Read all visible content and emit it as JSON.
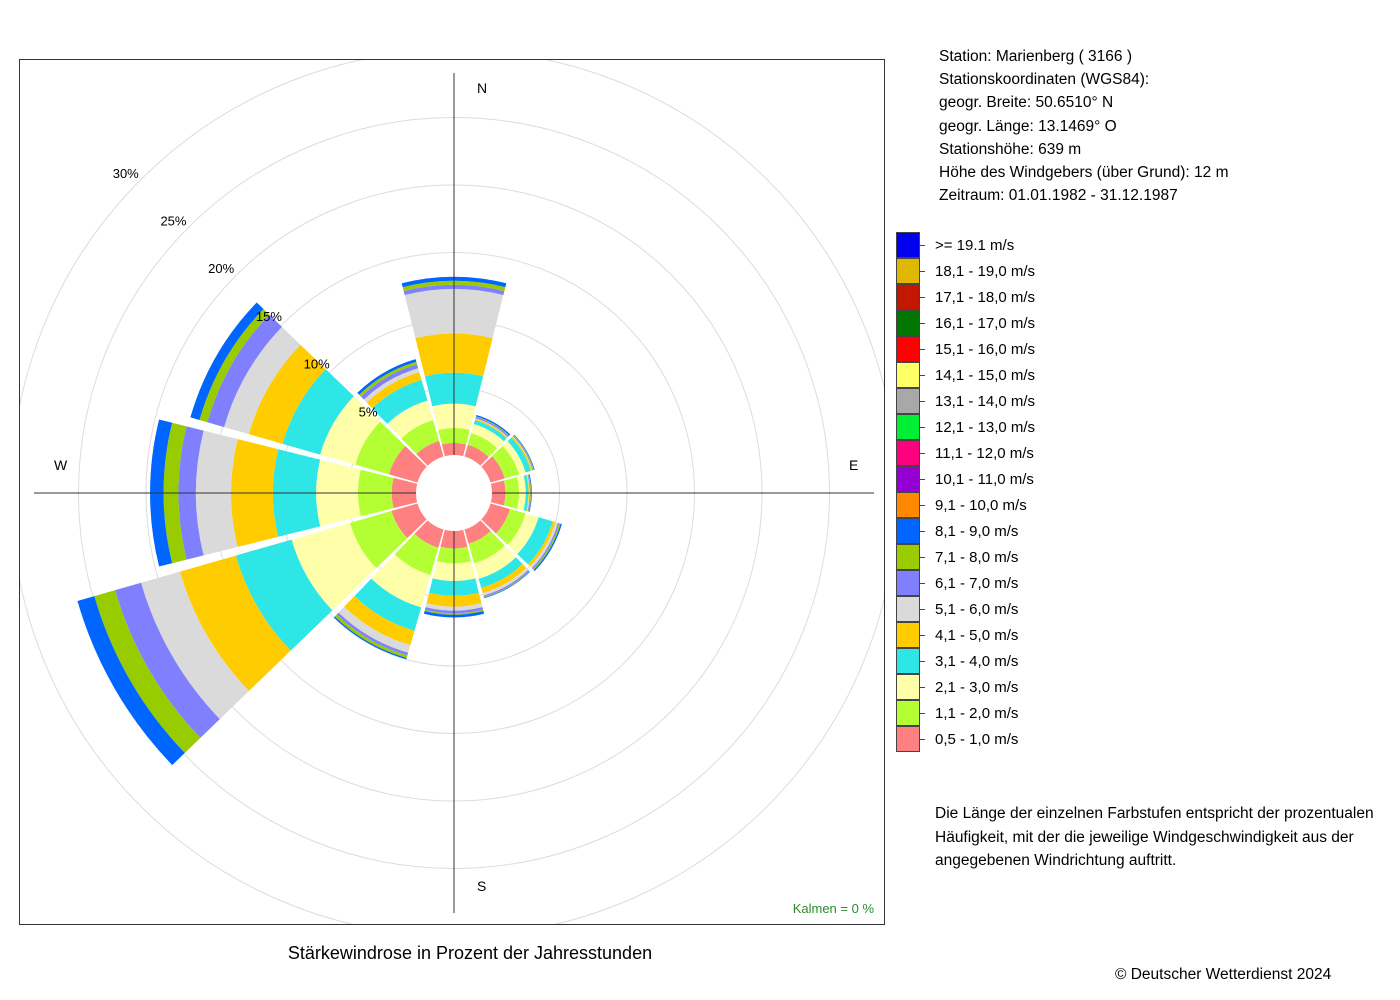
{
  "station": {
    "name_line": "Station:  Marienberg  ( 3166 )",
    "coords_title": "Stationskoordinaten (WGS84):",
    "lat": "geogr. Breite: 50.6510° N",
    "lon": "geogr. Länge: 13.1469° O",
    "altitude": "Stationshöhe: 639 m",
    "sensor_height": "Höhe des Windgebers (über Grund): 12 m",
    "period": "Zeitraum: 01.01.1982 - 31.12.1987"
  },
  "note": "Die Länge der einzelnen Farbstufen entspricht der prozentualen Häufigkeit, mit der die jeweilige Windgeschwindigkeit aus der angegebenen Windrichtung auftritt.",
  "copyright": "© Deutscher Wetterdienst  2024",
  "chart_data": {
    "type": "wind-rose",
    "title": "Stärkewindrose in Prozent der Jahresstunden",
    "directions": [
      "N",
      "E",
      "S",
      "W"
    ],
    "sectors_deg": [
      0,
      30,
      60,
      90,
      120,
      150,
      180,
      210,
      240,
      270,
      300,
      330
    ],
    "ring_labels": [
      "5%",
      "10%",
      "15%",
      "20%",
      "25%",
      "30%"
    ],
    "ring_values": [
      5,
      10,
      15,
      20,
      25,
      30
    ],
    "calm_label": "Kalmen  =  0 %",
    "bins": [
      {
        "label": ">= 19.1 m/s",
        "color": "#0000ee"
      },
      {
        "label": "18,1 - 19,0 m/s",
        "color": "#dfb700"
      },
      {
        "label": "17,1 - 18,0 m/s",
        "color": "#c21700"
      },
      {
        "label": "16,1 - 17,0 m/s",
        "color": "#007500"
      },
      {
        "label": "15,1 - 16,0 m/s",
        "color": "#ff0000"
      },
      {
        "label": "14,1 - 15,0 m/s",
        "color": "#ffff66"
      },
      {
        "label": "13,1 - 14,0 m/s",
        "color": "#a8a8a8"
      },
      {
        "label": "12,1 - 13,0 m/s",
        "color": "#00ee33"
      },
      {
        "label": "11,1 - 12,0 m/s",
        "color": "#ff007f"
      },
      {
        "label": "10,1 - 11,0 m/s",
        "color": "#9400d3"
      },
      {
        "label": "9,1 - 10,0 m/s",
        "color": "#ff8800"
      },
      {
        "label": "8,1 - 9,0 m/s",
        "color": "#0066ff"
      },
      {
        "label": "7,1 - 8,0 m/s",
        "color": "#99cc00"
      },
      {
        "label": "6,1 - 7,0 m/s",
        "color": "#8080ff"
      },
      {
        "label": "5,1 - 6,0 m/s",
        "color": "#dadada"
      },
      {
        "label": "4,1 - 5,0 m/s",
        "color": "#ffcc00"
      },
      {
        "label": "3,1 - 4,0 m/s",
        "color": "#2ee6e6"
      },
      {
        "label": "2,1 - 3,0 m/s",
        "color": "#ffffaa"
      },
      {
        "label": "1,1 - 2,0 m/s",
        "color": "#b3ff33"
      },
      {
        "label": "0,5 - 1,0 m/s",
        "color": "#ff8080"
      }
    ],
    "frequencies_pct_by_bin_ascending": {
      "0": [
        0.9,
        1.1,
        1.8,
        2.3,
        2.9,
        3.3,
        0.3,
        0.3,
        0.3
      ],
      "30": [
        0.9,
        0.9,
        0.7,
        0.3,
        0.1,
        0.05,
        0.1,
        0.05,
        0.1
      ],
      "60": [
        1.1,
        1.1,
        0.5,
        0.4,
        0.1,
        0.05,
        0.05,
        0.05,
        0.05
      ],
      "90": [
        1.0,
        1.0,
        0.5,
        0.2,
        0.05,
        0.05,
        0.05,
        0.05,
        0.05
      ],
      "120": [
        1.5,
        1.2,
        1.0,
        1.1,
        0.2,
        0.2,
        0.1,
        0.1,
        0.1
      ],
      "150": [
        1.1,
        1.5,
        1.2,
        0.7,
        0.4,
        0.2,
        0.1,
        0.05,
        0.05
      ],
      "180": [
        1.3,
        1.1,
        1.3,
        1.1,
        0.8,
        0.3,
        0.2,
        0.1,
        0.2
      ],
      "210": [
        1.4,
        2.1,
        2.5,
        1.8,
        1.1,
        0.6,
        0.2,
        0.2,
        0.1
      ],
      "240": [
        2.0,
        3.2,
        4.5,
        4.3,
        4.3,
        3.0,
        2.0,
        1.6,
        1.3
      ],
      "270": [
        1.8,
        2.5,
        3.1,
        3.2,
        3.1,
        2.6,
        1.3,
        1.1,
        1.0
      ],
      "300": [
        2.2,
        2.6,
        2.7,
        2.9,
        2.6,
        1.9,
        1.3,
        0.6,
        0.7
      ],
      "330": [
        1.2,
        1.6,
        1.5,
        1.6,
        0.6,
        0.3,
        0.3,
        0.2,
        0.2
      ]
    }
  }
}
